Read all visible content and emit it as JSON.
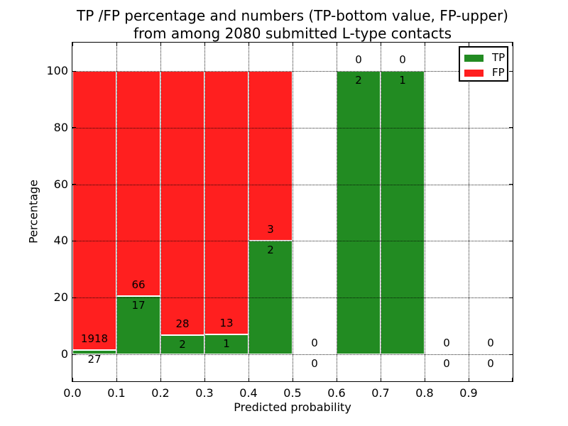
{
  "chart_data": {
    "type": "bar",
    "stacked": true,
    "title_lines": [
      "TP /FP percentage and numbers (TP-bottom value, FP-upper)",
      "from among 2080 submitted L-type contacts"
    ],
    "xlabel": "Predicted probability",
    "ylabel": "Percentage",
    "xlim": [
      0.0,
      1.0
    ],
    "ylim": [
      -9.5,
      110
    ],
    "grid": "dotted",
    "axis_color": "#000000",
    "background_color": "#ffffff",
    "xticks": [
      {
        "v": 0.0,
        "label": "0.0"
      },
      {
        "v": 0.1,
        "label": "0.1"
      },
      {
        "v": 0.2,
        "label": "0.2"
      },
      {
        "v": 0.3,
        "label": "0.3"
      },
      {
        "v": 0.4,
        "label": "0.4"
      },
      {
        "v": 0.5,
        "label": "0.5"
      },
      {
        "v": 0.6,
        "label": "0.6"
      },
      {
        "v": 0.7,
        "label": "0.7"
      },
      {
        "v": 0.8,
        "label": "0.8"
      },
      {
        "v": 0.9,
        "label": "0.9"
      },
      {
        "v": 1.0,
        "label": ""
      }
    ],
    "yticks": [
      {
        "v": 0,
        "label": "0"
      },
      {
        "v": 20,
        "label": "20"
      },
      {
        "v": 40,
        "label": "40"
      },
      {
        "v": 60,
        "label": "60"
      },
      {
        "v": 80,
        "label": "80"
      },
      {
        "v": 100,
        "label": "100"
      }
    ],
    "legend": {
      "position": "upper-right",
      "items": [
        {
          "label": "TP",
          "color": "#228b22"
        },
        {
          "label": "FP",
          "color": "#ff1f1f"
        }
      ]
    },
    "bins": [
      {
        "x0": 0.0,
        "x1": 0.1,
        "tp_count": 27,
        "fp_count": 1918,
        "tp_pct": 1.39,
        "fp_pct": 98.61
      },
      {
        "x0": 0.1,
        "x1": 0.2,
        "tp_count": 17,
        "fp_count": 66,
        "tp_pct": 20.48,
        "fp_pct": 79.52
      },
      {
        "x0": 0.2,
        "x1": 0.3,
        "tp_count": 2,
        "fp_count": 28,
        "tp_pct": 6.67,
        "fp_pct": 93.33
      },
      {
        "x0": 0.3,
        "x1": 0.4,
        "tp_count": 1,
        "fp_count": 13,
        "tp_pct": 7.14,
        "fp_pct": 92.86
      },
      {
        "x0": 0.4,
        "x1": 0.5,
        "tp_count": 2,
        "fp_count": 3,
        "tp_pct": 40.0,
        "fp_pct": 60.0
      },
      {
        "x0": 0.5,
        "x1": 0.6,
        "tp_count": 0,
        "fp_count": 0,
        "tp_pct": 0.0,
        "fp_pct": 0.0
      },
      {
        "x0": 0.6,
        "x1": 0.7,
        "tp_count": 2,
        "fp_count": 0,
        "tp_pct": 100.0,
        "fp_pct": 0.0
      },
      {
        "x0": 0.7,
        "x1": 0.8,
        "tp_count": 1,
        "fp_count": 0,
        "tp_pct": 100.0,
        "fp_pct": 0.0
      },
      {
        "x0": 0.8,
        "x1": 0.9,
        "tp_count": 0,
        "fp_count": 0,
        "tp_pct": 0.0,
        "fp_pct": 0.0
      },
      {
        "x0": 0.9,
        "x1": 1.0,
        "tp_count": 0,
        "fp_count": 0,
        "tp_pct": 0.0,
        "fp_pct": 0.0
      }
    ]
  }
}
